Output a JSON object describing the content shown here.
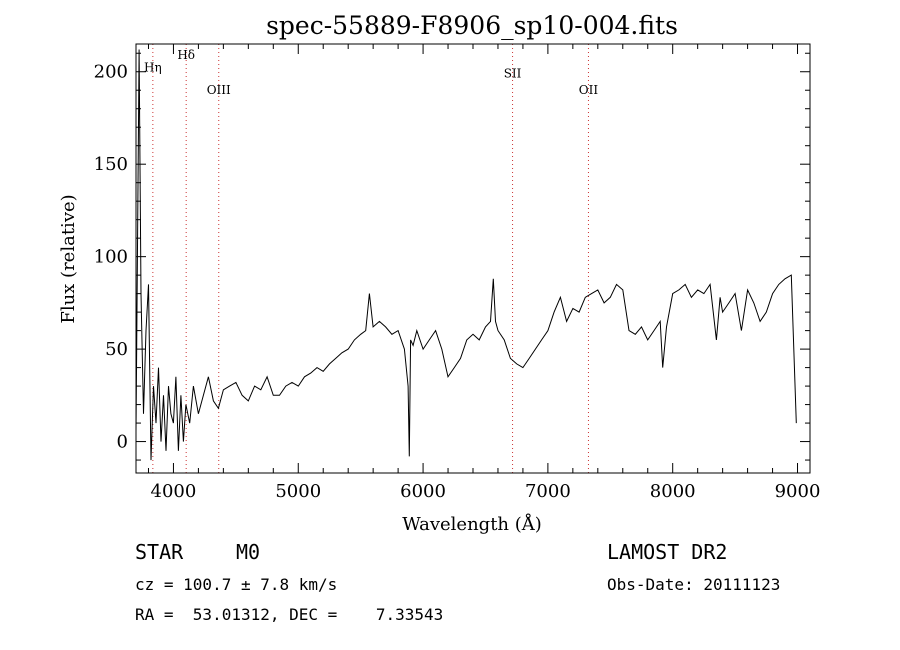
{
  "chart_data": {
    "type": "line",
    "title": "spec-55889-F8906_sp10-004.fits",
    "xlabel": "Wavelength (Å)",
    "ylabel": "Flux (relative)",
    "xlim": [
      3700,
      9100
    ],
    "ylim": [
      -17,
      215
    ],
    "x_ticks": [
      4000,
      5000,
      6000,
      7000,
      8000,
      9000
    ],
    "y_ticks": [
      0,
      50,
      100,
      150,
      200
    ],
    "line_color": "#000000",
    "marker_color": "#cc3333",
    "line_markers": [
      {
        "label": "Hη",
        "x": 3835,
        "label_y": 200
      },
      {
        "label": "Hδ",
        "x": 4102,
        "label_y": 207
      },
      {
        "label": "OIII",
        "x": 4363,
        "label_y": 188
      },
      {
        "label": "SII",
        "x": 6717,
        "label_y": 197
      },
      {
        "label": "OII",
        "x": 7325,
        "label_y": 188
      }
    ],
    "series": [
      {
        "x": [
          3700,
          3725,
          3740,
          3760,
          3780,
          3800,
          3820,
          3840,
          3860,
          3880,
          3900,
          3920,
          3940,
          3960,
          3980,
          4000,
          4020,
          4040,
          4060,
          4080,
          4100,
          4130,
          4160,
          4200,
          4240,
          4280,
          4320,
          4360,
          4400,
          4450,
          4500,
          4550,
          4600,
          4650,
          4700,
          4750,
          4800,
          4850,
          4900,
          4950,
          5000,
          5050,
          5100,
          5150,
          5200,
          5250,
          5300,
          5350,
          5400,
          5450,
          5500,
          5540,
          5570,
          5600,
          5650,
          5700,
          5750,
          5800,
          5850,
          5880,
          5890,
          5900,
          5920,
          5950,
          6000,
          6050,
          6100,
          6150,
          6200,
          6250,
          6300,
          6350,
          6400,
          6450,
          6500,
          6540,
          6563,
          6580,
          6600,
          6650,
          6700,
          6750,
          6800,
          6850,
          6900,
          6950,
          7000,
          7050,
          7100,
          7150,
          7200,
          7250,
          7300,
          7350,
          7400,
          7450,
          7500,
          7550,
          7600,
          7650,
          7700,
          7750,
          7800,
          7850,
          7900,
          7920,
          7950,
          8000,
          8050,
          8100,
          8150,
          8200,
          8250,
          8300,
          8350,
          8380,
          8400,
          8450,
          8500,
          8550,
          8600,
          8650,
          8700,
          8750,
          8800,
          8850,
          8900,
          8950,
          8990
        ],
        "y": [
          5,
          212,
          80,
          15,
          60,
          85,
          -10,
          30,
          10,
          40,
          0,
          25,
          -5,
          30,
          15,
          10,
          35,
          -5,
          25,
          0,
          20,
          10,
          30,
          15,
          25,
          35,
          22,
          18,
          28,
          30,
          32,
          25,
          22,
          30,
          28,
          35,
          25,
          25,
          30,
          32,
          30,
          35,
          37,
          40,
          38,
          42,
          45,
          48,
          50,
          55,
          58,
          60,
          80,
          62,
          65,
          62,
          58,
          60,
          50,
          30,
          -8,
          55,
          52,
          60,
          50,
          55,
          60,
          50,
          35,
          40,
          45,
          55,
          58,
          55,
          62,
          65,
          88,
          65,
          60,
          55,
          45,
          42,
          40,
          45,
          50,
          55,
          60,
          70,
          78,
          65,
          72,
          70,
          78,
          80,
          82,
          75,
          78,
          85,
          82,
          60,
          58,
          62,
          55,
          60,
          65,
          40,
          62,
          80,
          82,
          85,
          78,
          82,
          80,
          85,
          55,
          78,
          70,
          75,
          80,
          60,
          82,
          75,
          65,
          70,
          80,
          85,
          88,
          90,
          10
        ]
      }
    ]
  },
  "footer": {
    "object_class": "STAR",
    "subclass": "M0",
    "survey": "LAMOST DR2",
    "redshift": "cz = 100.7 ± 7.8 km/s",
    "obs_date": "Obs-Date: 20111123",
    "coords": "RA =  53.01312, DEC =    7.33543"
  }
}
